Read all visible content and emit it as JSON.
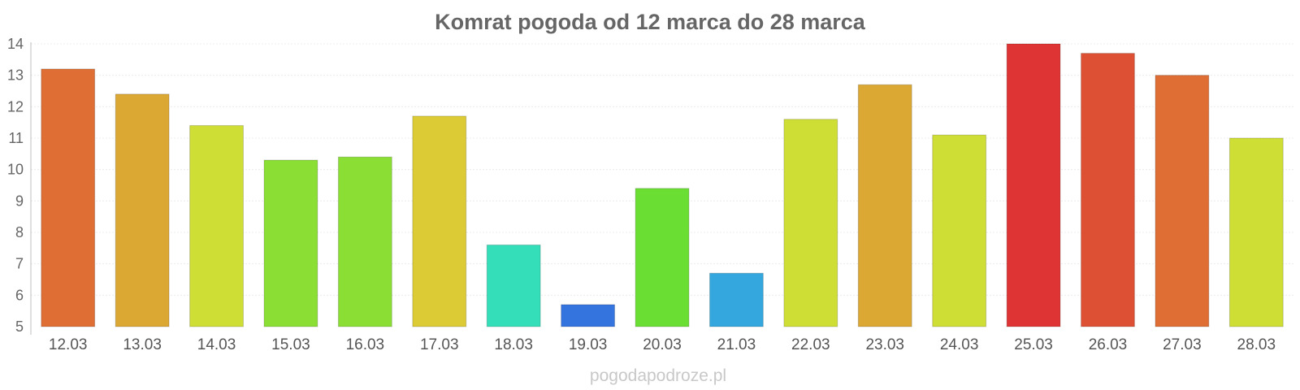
{
  "chart_data": {
    "type": "bar",
    "title": "Komrat pogoda od 12 marca do 28 marca",
    "xlabel": "",
    "ylabel": "",
    "categories": [
      "12.03",
      "13.03",
      "14.03",
      "15.03",
      "16.03",
      "17.03",
      "18.03",
      "19.03",
      "20.03",
      "21.03",
      "22.03",
      "23.03",
      "24.03",
      "25.03",
      "26.03",
      "27.03",
      "28.03"
    ],
    "values": [
      13.2,
      12.4,
      11.4,
      10.3,
      10.4,
      11.7,
      7.6,
      5.7,
      9.4,
      6.7,
      11.6,
      12.7,
      11.1,
      14.0,
      13.7,
      13.0,
      11.0
    ],
    "colors": [
      "#de6e33",
      "#dca834",
      "#cfde34",
      "#8ade34",
      "#8ade34",
      "#dccb34",
      "#34deb9",
      "#3474de",
      "#6bde34",
      "#34a8de",
      "#cfde34",
      "#dca834",
      "#cfde34",
      "#de3434",
      "#de5034",
      "#de6e33",
      "#cfde34"
    ],
    "ylim": [
      5,
      14
    ],
    "yticks": [
      "5",
      "6",
      "7",
      "8",
      "9",
      "10",
      "11",
      "12",
      "13",
      "14"
    ],
    "grid": true,
    "legend": "none"
  },
  "watermark": "pogodapodroze.pl"
}
